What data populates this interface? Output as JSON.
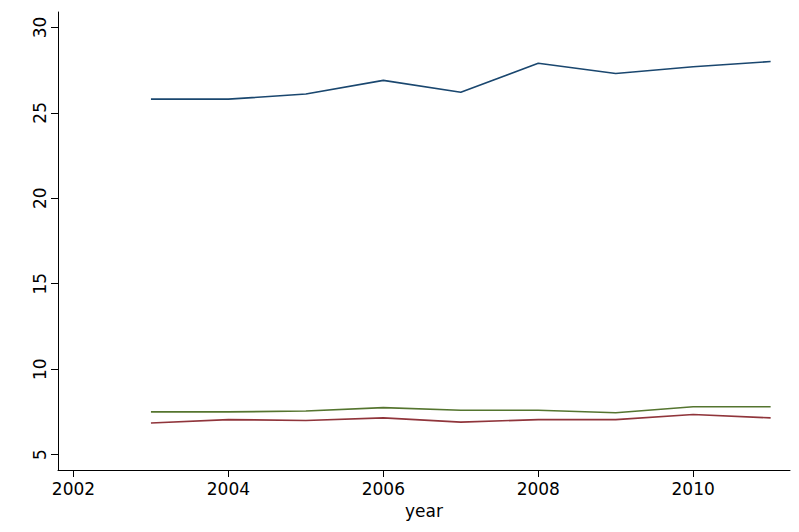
{
  "chart_data": {
    "type": "line",
    "x_label": "year",
    "x": [
      2003,
      2004,
      2005,
      2006,
      2007,
      2008,
      2009,
      2010,
      2011
    ],
    "series": [
      {
        "color": "#1a476f",
        "values": [
          25.8,
          25.8,
          26.1,
          26.9,
          26.2,
          27.9,
          27.3,
          27.7,
          28.0
        ]
      },
      {
        "color": "#55752f",
        "values": [
          7.5,
          7.5,
          7.55,
          7.75,
          7.6,
          7.6,
          7.45,
          7.8,
          7.8
        ]
      },
      {
        "color": "#90353b",
        "values": [
          6.85,
          7.05,
          7.0,
          7.15,
          6.9,
          7.05,
          7.05,
          7.35,
          7.15
        ]
      }
    ],
    "xlim": [
      2001.8,
      2011.25
    ],
    "xticks": [
      2002,
      2004,
      2006,
      2008,
      2010
    ],
    "ylim": [
      4.1,
      30.9
    ],
    "yticks": [
      5,
      10,
      15,
      20,
      25,
      30
    ],
    "grid": false
  }
}
